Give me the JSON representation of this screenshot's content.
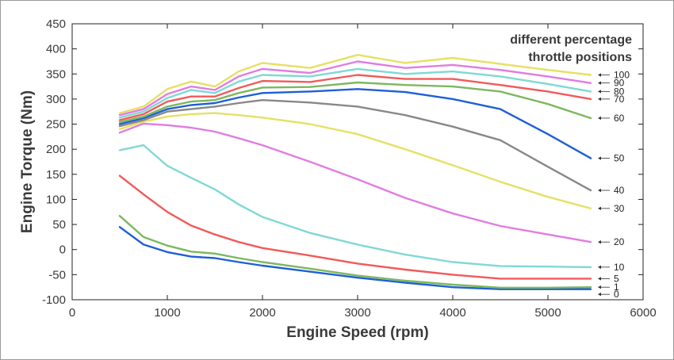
{
  "chart_data": {
    "type": "line",
    "title": "",
    "xlabel": "Engine Speed (rpm)",
    "ylabel": "Engine Torque (Nm)",
    "xlim": [
      0,
      6000
    ],
    "ylim": [
      -100,
      450
    ],
    "xticks": [
      0,
      1000,
      2000,
      3000,
      4000,
      5000,
      6000
    ],
    "yticks": [
      -100,
      -50,
      0,
      50,
      100,
      150,
      200,
      250,
      300,
      350,
      400,
      450
    ],
    "grid": false,
    "legend_title": [
      "different percentage",
      "throttle positions"
    ],
    "x": [
      500,
      750,
      1000,
      1250,
      1500,
      1750,
      2000,
      2500,
      3000,
      3500,
      4000,
      4500,
      5000,
      5450
    ],
    "series": [
      {
        "name": "100",
        "color": "#e6e065",
        "values": [
          272,
          285,
          320,
          335,
          325,
          355,
          372,
          362,
          388,
          372,
          382,
          370,
          358,
          348
        ]
      },
      {
        "name": "90",
        "color": "#e07de0",
        "values": [
          268,
          280,
          310,
          325,
          318,
          345,
          360,
          352,
          375,
          362,
          368,
          358,
          345,
          332
        ]
      },
      {
        "name": "80",
        "color": "#7fd9d4",
        "values": [
          263,
          275,
          302,
          318,
          312,
          335,
          348,
          345,
          360,
          350,
          355,
          345,
          330,
          315
        ]
      },
      {
        "name": "70",
        "color": "#f25a5a",
        "values": [
          258,
          270,
          295,
          305,
          305,
          322,
          336,
          334,
          348,
          340,
          340,
          328,
          315,
          300
        ]
      },
      {
        "name": "60",
        "color": "#7cb85f",
        "values": [
          254,
          265,
          285,
          295,
          298,
          312,
          323,
          324,
          333,
          328,
          325,
          315,
          290,
          262
        ]
      },
      {
        "name": "50",
        "color": "#1f5fd6",
        "values": [
          250,
          262,
          280,
          288,
          292,
          303,
          312,
          315,
          320,
          314,
          300,
          280,
          230,
          182
        ]
      },
      {
        "name": "40",
        "color": "#888888",
        "values": [
          246,
          258,
          275,
          280,
          285,
          292,
          298,
          293,
          285,
          268,
          245,
          218,
          165,
          118
        ]
      },
      {
        "name": "30",
        "color": "#e6e065",
        "values": [
          240,
          255,
          265,
          270,
          272,
          268,
          263,
          250,
          230,
          200,
          168,
          135,
          105,
          82
        ]
      },
      {
        "name": "20",
        "color": "#e07de0",
        "values": [
          233,
          251,
          248,
          243,
          235,
          222,
          208,
          175,
          140,
          103,
          72,
          47,
          30,
          15
        ]
      },
      {
        "name": "10",
        "color": "#7fd9d4",
        "values": [
          198,
          208,
          167,
          143,
          120,
          90,
          65,
          33,
          10,
          -10,
          -25,
          -33,
          -34,
          -35
        ]
      },
      {
        "name": "5",
        "color": "#f25a5a",
        "values": [
          147,
          110,
          75,
          48,
          30,
          15,
          3,
          -12,
          -28,
          -40,
          -50,
          -58,
          -58,
          -58
        ]
      },
      {
        "name": "1",
        "color": "#7cb85f",
        "values": [
          67,
          25,
          8,
          -4,
          -8,
          -17,
          -25,
          -38,
          -52,
          -62,
          -70,
          -76,
          -76,
          -75
        ]
      },
      {
        "name": "0",
        "color": "#1f5fd6",
        "values": [
          45,
          10,
          -5,
          -14,
          -17,
          -25,
          -32,
          -44,
          -56,
          -66,
          -75,
          -79,
          -79,
          -79
        ]
      }
    ]
  }
}
